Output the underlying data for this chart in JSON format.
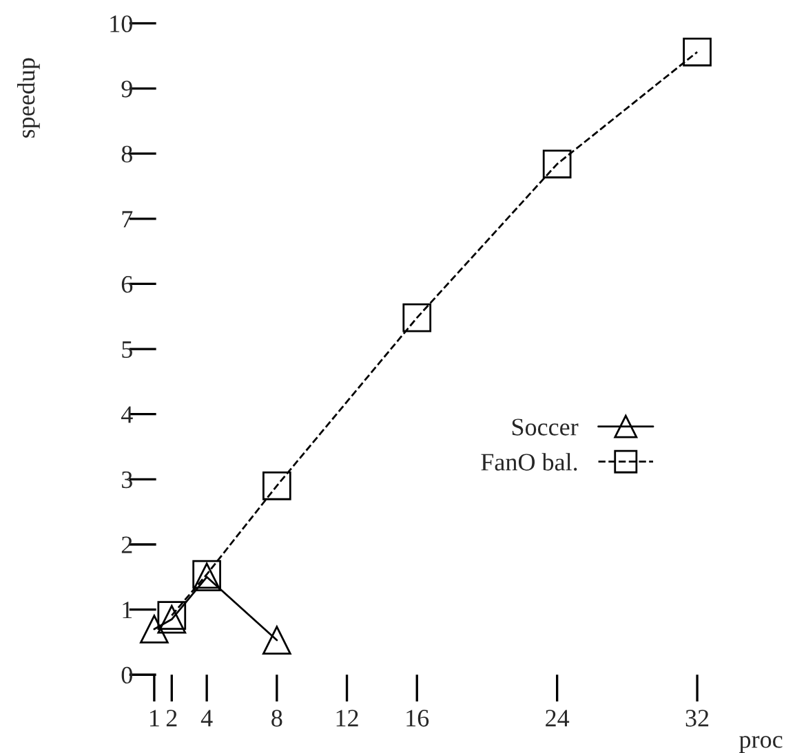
{
  "chart_data": {
    "type": "line",
    "xlabel": "proc",
    "ylabel": "speedup",
    "series": [
      {
        "name": "Soccer",
        "color": "#000000",
        "x": [
          1,
          2,
          4,
          8
        ],
        "values": [
          0.7,
          0.85,
          1.5,
          0.53
        ],
        "marker": "triangle",
        "line_style": "solid"
      },
      {
        "name": "FanO bal.",
        "color": "#000000",
        "x": [
          2,
          4,
          8,
          16,
          24,
          32
        ],
        "values": [
          0.91,
          1.54,
          2.9,
          5.48,
          7.84,
          9.56
        ],
        "marker": "square",
        "line_style": "dashed"
      }
    ],
    "xlim": [
      1,
      32
    ],
    "ylim": [
      0,
      10
    ],
    "xticks": [
      {
        "value": 1,
        "label": "1"
      },
      {
        "value": 2,
        "label": "2"
      },
      4,
      8,
      12,
      16,
      24,
      32
    ],
    "yticks": [
      0,
      1,
      2,
      3,
      4,
      5,
      6,
      7,
      8,
      9,
      10
    ],
    "grid": false,
    "legend": "right"
  }
}
